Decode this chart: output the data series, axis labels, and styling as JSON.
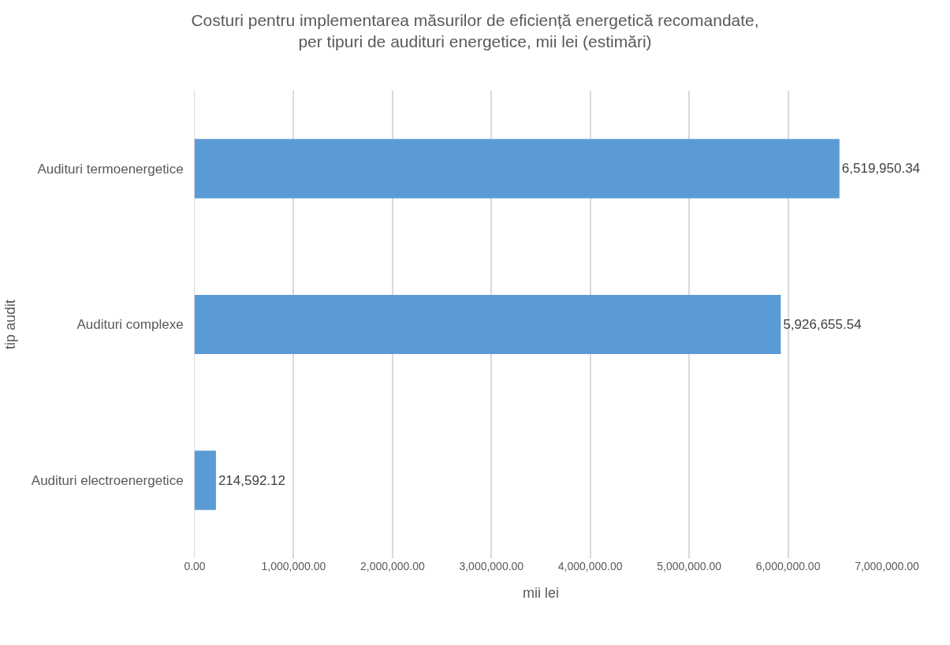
{
  "chart_data": {
    "type": "bar",
    "orientation": "horizontal",
    "title": "Costuri pentru implementarea măsurilor de eficiență energetică recomandate,\nper tipuri de audituri energetice, mii lei (estimări)",
    "xlabel": "mii lei",
    "ylabel": "tip audit",
    "categories": [
      "Audituri termoenergetice",
      "Audituri complexe",
      "Audituri electroenergetice"
    ],
    "values": [
      6519950.34,
      5926655.54,
      214592.12
    ],
    "value_labels": [
      "6,519,950.34",
      "5,926,655.54",
      "214,592.12"
    ],
    "color": "#5b9bd5",
    "xlim": [
      0,
      7000000
    ],
    "xticks": [
      {
        "value": 0,
        "label": "0.00"
      },
      {
        "value": 1000000,
        "label": "1,000,000.00"
      },
      {
        "value": 2000000,
        "label": "2,000,000.00"
      },
      {
        "value": 3000000,
        "label": "3,000,000.00"
      },
      {
        "value": 4000000,
        "label": "4,000,000.00"
      },
      {
        "value": 5000000,
        "label": "5,000,000.00"
      },
      {
        "value": 6000000,
        "label": "6,000,000.00"
      },
      {
        "value": 7000000,
        "label": "7,000,000.00"
      }
    ],
    "grid": "x"
  }
}
